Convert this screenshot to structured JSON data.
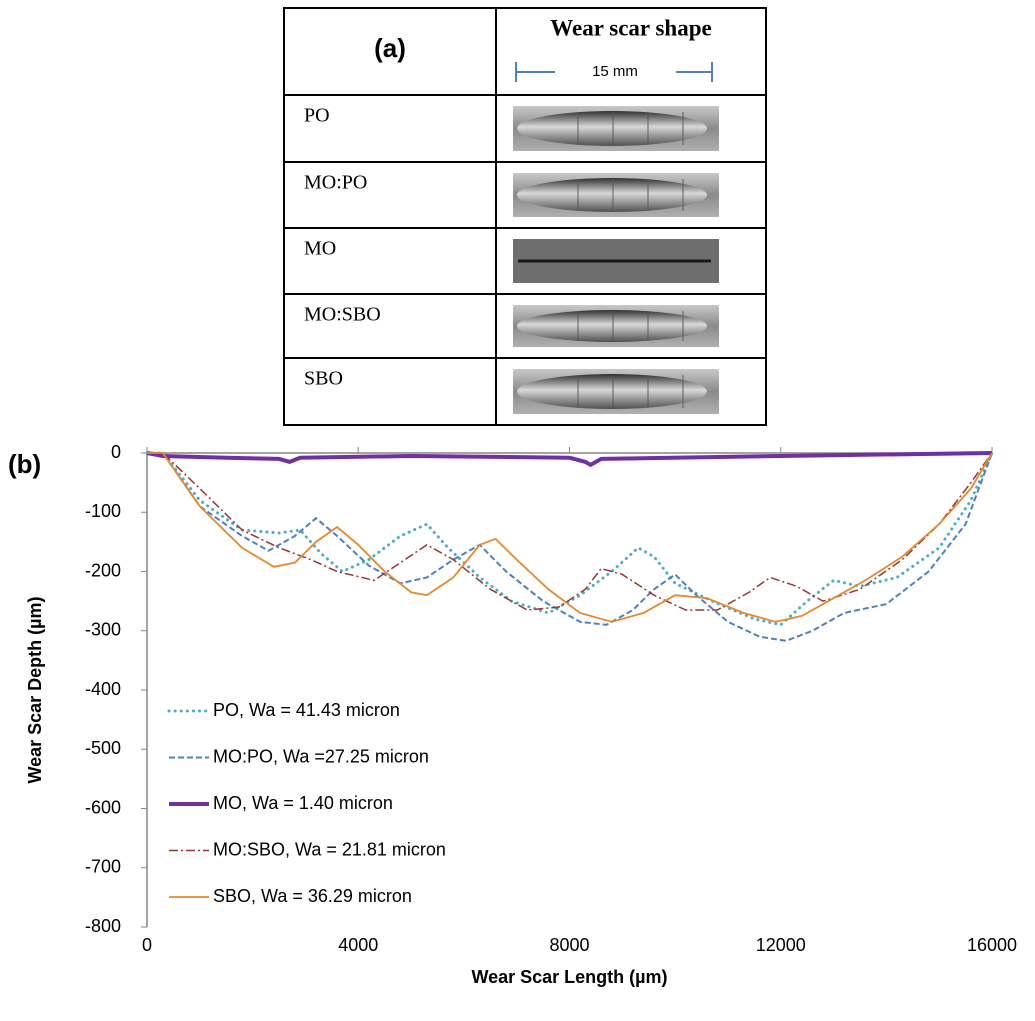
{
  "table": {
    "header": [
      "(a)",
      "Wear scar shape"
    ],
    "scale_label": "15 mm",
    "rows": [
      "PO",
      "MO:PO",
      "MO",
      "MO:SBO",
      "SBO"
    ]
  },
  "chart_data": {
    "type": "line",
    "panel_label": "(b)",
    "x_label": "Wear Scar Length (µm)",
    "y_label": "Wear Scar Depth (µm)",
    "xlim": [
      0,
      16000
    ],
    "xticks": [
      0,
      4000,
      8000,
      12000,
      16000
    ],
    "ylim": [
      -800,
      0
    ],
    "yticks": [
      -800,
      -700,
      -600,
      -500,
      -400,
      -300,
      -200,
      -100,
      0
    ],
    "grid": false,
    "legend": "lower left",
    "series": [
      {
        "name": "PO, Wa = 41.43 micron",
        "color": "#4bacc6",
        "style": "dotted",
        "line_width": 3,
        "x": [
          0,
          300,
          1000,
          1800,
          2500,
          2900,
          3300,
          3700,
          4200,
          4800,
          5300,
          5700,
          6300,
          6900,
          7600,
          8200,
          8800,
          9300,
          9600,
          10000,
          10700,
          11500,
          12000,
          12500,
          13000,
          13500,
          14200,
          15000,
          15600,
          16000
        ],
        "values": [
          0,
          0,
          -80,
          -130,
          -135,
          -130,
          -170,
          -200,
          -180,
          -140,
          -120,
          -160,
          -210,
          -250,
          -270,
          -240,
          -200,
          -160,
          -175,
          -220,
          -250,
          -280,
          -290,
          -250,
          -215,
          -225,
          -210,
          -160,
          -80,
          0
        ]
      },
      {
        "name": "MO:PO, Wa =27.25 micron",
        "color": "#4f81bd",
        "style": "dashed",
        "line_width": 2,
        "x": [
          0,
          300,
          1000,
          1800,
          2300,
          2800,
          3200,
          3600,
          4200,
          4800,
          5300,
          5800,
          6300,
          6800,
          7500,
          8200,
          8700,
          9200,
          9600,
          10000,
          10400,
          11000,
          11600,
          12100,
          12600,
          13200,
          14000,
          14800,
          15500,
          16000
        ],
        "values": [
          0,
          0,
          -90,
          -140,
          -165,
          -140,
          -110,
          -140,
          -190,
          -220,
          -210,
          -180,
          -155,
          -200,
          -250,
          -285,
          -290,
          -265,
          -230,
          -205,
          -240,
          -285,
          -310,
          -317,
          -300,
          -270,
          -255,
          -200,
          -120,
          0
        ]
      },
      {
        "name": "MO, Wa = 1.40 micron",
        "color": "#7030a0",
        "style": "solid",
        "line_width": 4,
        "x": [
          0,
          300,
          1500,
          2500,
          2700,
          2900,
          5000,
          8000,
          8300,
          8400,
          8600,
          12000,
          16000
        ],
        "values": [
          0,
          -5,
          -8,
          -10,
          -15,
          -8,
          -5,
          -8,
          -15,
          -20,
          -10,
          -5,
          0
        ]
      },
      {
        "name": "MO:SBO, Wa = 21.81 micron",
        "color": "#953735",
        "style": "dashdot",
        "line_width": 1.5,
        "x": [
          0,
          300,
          1000,
          1800,
          2500,
          3100,
          3600,
          4300,
          4800,
          5300,
          5800,
          6500,
          7200,
          7800,
          8300,
          8600,
          9000,
          9600,
          10200,
          10800,
          11400,
          11800,
          12300,
          12800,
          13500,
          14300,
          15000,
          15600,
          16000
        ],
        "values": [
          0,
          0,
          -60,
          -130,
          -160,
          -180,
          -200,
          -215,
          -185,
          -155,
          -180,
          -230,
          -265,
          -260,
          -230,
          -195,
          -205,
          -240,
          -265,
          -265,
          -235,
          -210,
          -225,
          -250,
          -230,
          -180,
          -120,
          -50,
          0
        ]
      },
      {
        "name": "SBO, Wa = 36.29 micron",
        "color": "#e4892f",
        "style": "solid",
        "line_width": 1.8,
        "x": [
          0,
          300,
          1000,
          1800,
          2400,
          2800,
          3200,
          3600,
          4000,
          4500,
          5000,
          5300,
          5800,
          6300,
          6600,
          7000,
          7600,
          8200,
          8800,
          9400,
          10000,
          10600,
          11300,
          11900,
          12400,
          13000,
          13600,
          14300,
          15000,
          15600,
          16000
        ],
        "values": [
          0,
          0,
          -90,
          -160,
          -192,
          -185,
          -150,
          -125,
          -155,
          -200,
          -235,
          -240,
          -210,
          -155,
          -145,
          -180,
          -230,
          -270,
          -285,
          -270,
          -240,
          -245,
          -270,
          -285,
          -275,
          -245,
          -215,
          -175,
          -120,
          -60,
          0
        ]
      }
    ]
  }
}
